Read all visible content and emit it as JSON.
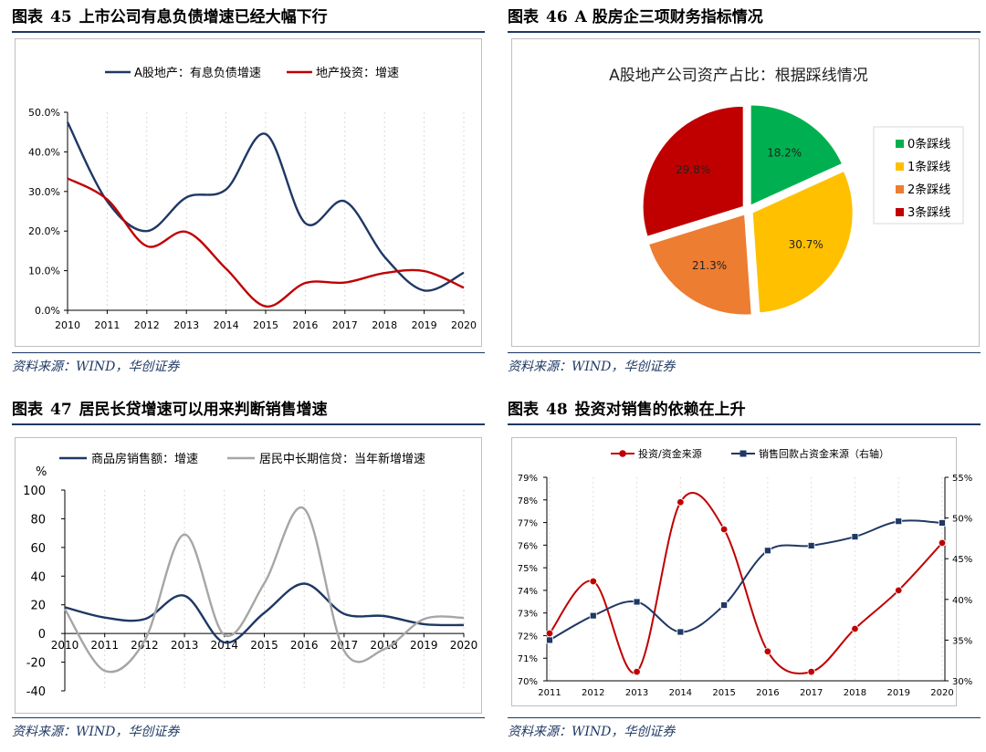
{
  "panels": [
    {
      "label": "图表",
      "number": "45",
      "title": "上市公司有息负债增速已经大幅下行",
      "source": "资料来源：WIND，华创证券"
    },
    {
      "label": "图表",
      "number": "46",
      "title": "A 股房企三项财务指标情况",
      "source": "资料来源：WIND，华创证券"
    },
    {
      "label": "图表",
      "number": "47",
      "title": "居民长贷增速可以用来判断销售增速",
      "source": "资料来源：WIND，华创证券"
    },
    {
      "label": "图表",
      "number": "48",
      "title": "投资对销售的依赖在上升",
      "source": "资料来源：WIND，华创证券"
    }
  ],
  "chart_data": [
    {
      "type": "line",
      "x": [
        "2010",
        "2011",
        "2012",
        "2013",
        "2014",
        "2015",
        "2016",
        "2017",
        "2018",
        "2019",
        "2020"
      ],
      "series": [
        {
          "name": "A股地产：有息负债增速",
          "color": "#1f3864",
          "values": [
            47.5,
            27.5,
            20.0,
            28.5,
            30.5,
            44.5,
            22.0,
            27.5,
            13.5,
            5.0,
            9.5
          ]
        },
        {
          "name": "地产投资：增速",
          "color": "#c00000",
          "values": [
            33.3,
            28.0,
            16.2,
            19.8,
            10.5,
            1.0,
            6.9,
            7.0,
            9.4,
            9.9,
            5.7
          ]
        }
      ],
      "yticks": [
        "50.0%",
        "40.0%",
        "30.0%",
        "20.0%",
        "10.0%",
        "0.0%"
      ],
      "ylim": [
        0,
        50
      ],
      "legend": "top"
    },
    {
      "type": "pie",
      "title": "A股地产公司资产占比：根据踩线情况",
      "slices": [
        {
          "name": "0条踩线",
          "value": 18.2,
          "label": "18.2%",
          "color": "#00b050"
        },
        {
          "name": "1条踩线",
          "value": 30.7,
          "label": "30.7%",
          "color": "#ffc000"
        },
        {
          "name": "2条踩线",
          "value": 21.3,
          "label": "21.3%",
          "color": "#ed7d31"
        },
        {
          "name": "3条踩线",
          "value": 29.8,
          "label": "29.8%",
          "color": "#c00000"
        }
      ],
      "legend": "right"
    },
    {
      "type": "line",
      "x": [
        "2010",
        "2011",
        "2012",
        "2013",
        "2014",
        "2015",
        "2016",
        "2017",
        "2018",
        "2019",
        "2020"
      ],
      "series": [
        {
          "name": "商品房销售额：增速",
          "color": "#1f3864",
          "values": [
            18.3,
            11.1,
            10.0,
            26.3,
            -6.3,
            14.4,
            34.8,
            13.7,
            12.2,
            6.5,
            5.9
          ]
        },
        {
          "name": "居民中长期信贷：当年新增增速",
          "color": "#a6a6a6",
          "values": [
            17,
            -26,
            -5,
            69,
            -1,
            35,
            87,
            -12,
            -11,
            10,
            11
          ]
        }
      ],
      "yunit": "%",
      "yticks": [
        "100",
        "80",
        "60",
        "40",
        "20",
        "0",
        "-20",
        "-40"
      ],
      "ylim": [
        -40,
        100
      ],
      "legend": "top"
    },
    {
      "type": "line",
      "x": [
        "2011",
        "2012",
        "2013",
        "2014",
        "2015",
        "2016",
        "2017",
        "2018",
        "2019",
        "2020"
      ],
      "series": [
        {
          "name": "投资/资金来源",
          "color": "#c00000",
          "axis": "left",
          "values": [
            72.1,
            74.4,
            70.4,
            77.9,
            76.7,
            71.3,
            70.4,
            72.3,
            74.0,
            76.1
          ]
        },
        {
          "name": "销售回款占资金来源（右轴）",
          "color": "#1f3864",
          "axis": "right",
          "values": [
            35.0,
            38.0,
            39.7,
            36.0,
            39.3,
            46.0,
            46.6,
            47.7,
            49.6,
            49.4
          ]
        }
      ],
      "yticks_left": [
        "79%",
        "78%",
        "77%",
        "76%",
        "75%",
        "74%",
        "73%",
        "72%",
        "71%",
        "70%"
      ],
      "yticks_right": [
        "55%",
        "50%",
        "45%",
        "40%",
        "35%",
        "30%"
      ],
      "ylim_left": [
        70,
        79
      ],
      "ylim_right": [
        30,
        55
      ],
      "legend": "top"
    }
  ]
}
